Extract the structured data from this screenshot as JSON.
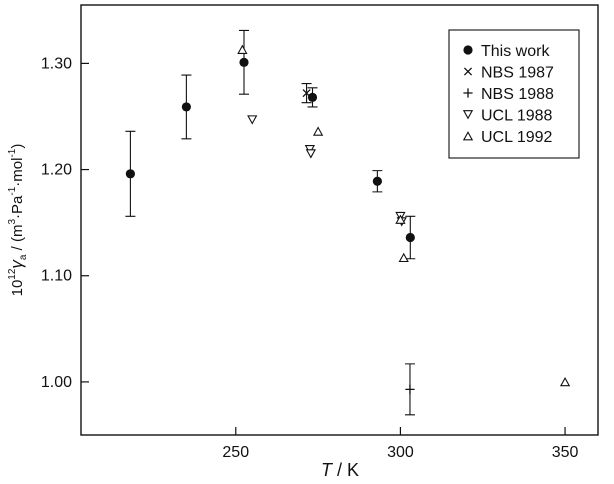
{
  "chart_data": {
    "type": "scatter",
    "title": "",
    "xlabel": {
      "italic": "T",
      "rest": " / K"
    },
    "ylabel": {
      "prefix": "10",
      "power": "12",
      "symbol": "γ",
      "subscript": "a",
      "unit_open": " / (m",
      "unit_exp1": "3",
      "unit_mid1": "·Pa",
      "unit_exp2": "-1",
      "unit_mid2": "·mol",
      "unit_exp3": "-1",
      "unit_close": ")"
    },
    "xlim": [
      203,
      360
    ],
    "ylim": [
      0.95,
      1.355
    ],
    "xticks": [
      250,
      300,
      350
    ],
    "xtick_labels": [
      "250",
      "300",
      "350"
    ],
    "yticks": [
      1.0,
      1.1,
      1.2,
      1.3
    ],
    "ytick_labels": [
      "1.00",
      "1.10",
      "1.20",
      "1.30"
    ],
    "grid": false,
    "legend_position": "top-right",
    "series": [
      {
        "name": "This work",
        "marker": "filled-circle",
        "points": [
          {
            "x": 218.0,
            "y": 1.196,
            "err": 0.04
          },
          {
            "x": 235.0,
            "y": 1.259,
            "err": 0.03
          },
          {
            "x": 252.5,
            "y": 1.301,
            "err": 0.03
          },
          {
            "x": 273.3,
            "y": 1.268,
            "err": 0.009
          },
          {
            "x": 293.0,
            "y": 1.189,
            "err": 0.01
          },
          {
            "x": 303.0,
            "y": 1.136,
            "err": 0.02
          }
        ]
      },
      {
        "name": "NBS 1987",
        "marker": "x",
        "points": [
          {
            "x": 271.5,
            "y": 1.272,
            "err": 0.009
          }
        ]
      },
      {
        "name": "NBS 1988",
        "marker": "plus",
        "points": [
          {
            "x": 302.9,
            "y": 0.993,
            "err": 0.024
          }
        ]
      },
      {
        "name": "UCL 1988",
        "marker": "triangle-down",
        "points": [
          {
            "x": 255.0,
            "y": 1.247
          },
          {
            "x": 272.5,
            "y": 1.219
          },
          {
            "x": 272.8,
            "y": 1.215
          },
          {
            "x": 300.0,
            "y": 1.156
          },
          {
            "x": 300.4,
            "y": 1.151
          }
        ]
      },
      {
        "name": "UCL 1992",
        "marker": "triangle-up",
        "points": [
          {
            "x": 252.0,
            "y": 1.313
          },
          {
            "x": 275.0,
            "y": 1.236
          },
          {
            "x": 300.0,
            "y": 1.153
          },
          {
            "x": 301.0,
            "y": 1.117
          },
          {
            "x": 350.0,
            "y": 1.0
          }
        ]
      }
    ]
  }
}
